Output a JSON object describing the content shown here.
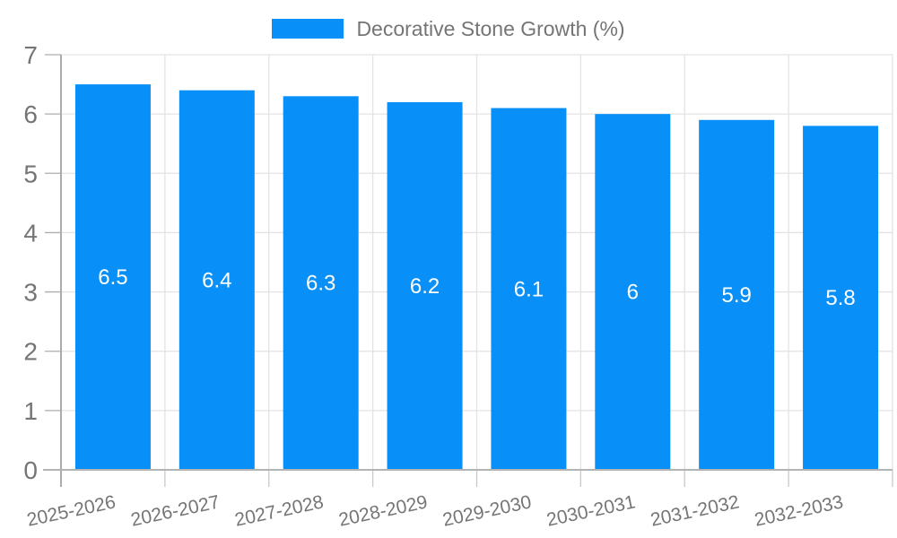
{
  "legend": {
    "label": "Decorative Stone Growth (%)"
  },
  "chart_data": {
    "type": "bar",
    "title": "Decorative Stone Growth (%)",
    "series_name": "Decorative Stone Growth (%)",
    "categories": [
      "2025-2026",
      "2026-2027",
      "2027-2028",
      "2028-2029",
      "2029-2030",
      "2030-2031",
      "2031-2032",
      "2032-2033"
    ],
    "values": [
      6.5,
      6.4,
      6.3,
      6.2,
      6.1,
      6,
      5.9,
      5.8
    ],
    "bar_labels": [
      "6.5",
      "6.4",
      "6.3",
      "6.2",
      "6.1",
      "6",
      "5.9",
      "5.8"
    ],
    "y_ticks": [
      0,
      1,
      2,
      3,
      4,
      5,
      6,
      7
    ],
    "y_tick_labels": [
      "0",
      "1",
      "2",
      "3",
      "4",
      "5",
      "6",
      "7"
    ],
    "ylim": [
      0,
      7
    ],
    "xlabel": "",
    "ylabel": "",
    "grid": true,
    "legend_position": "top-center",
    "data_labels_position": "center-inside",
    "x_label_rotation_deg": -12,
    "colors": {
      "bar": "#0890F8",
      "axis_text": "#757575",
      "legend_text": "#757575",
      "grid_line": "#E3E3E3",
      "tick_mark": "#ADADAD",
      "x_tick_mark": "#C9C9C9",
      "axis_line": "#ABABAB",
      "baseline": "#B3B3B3",
      "data_label": "#FFFFFF",
      "background": "#FFFFFF"
    }
  }
}
